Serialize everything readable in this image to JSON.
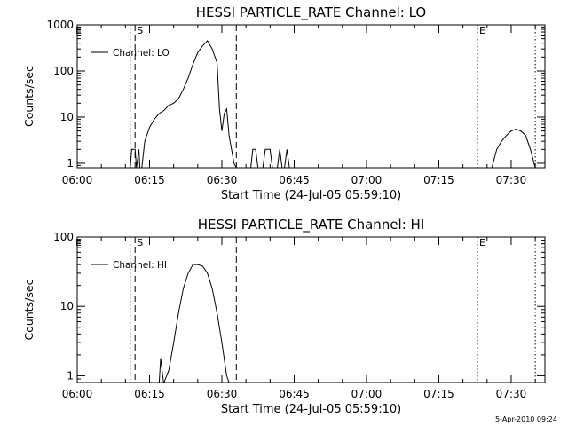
{
  "footer": "5-Apr-2010 09:24",
  "chart_data": [
    {
      "type": "line",
      "title": "HESSI PARTICLE_RATE Channel: LO",
      "xlabel": "Start Time (24-Jul-05 05:59:10)",
      "ylabel": "Counts/sec",
      "yscale": "log",
      "xlim": [
        "06:00",
        "07:37"
      ],
      "ylim": [
        0.8,
        1000
      ],
      "x_ticks": [
        "06:00",
        "06:15",
        "06:30",
        "06:45",
        "07:00",
        "07:15",
        "07:30"
      ],
      "y_ticks": [
        {
          "value": 1,
          "label": "1"
        },
        {
          "value": 10,
          "label": "10"
        },
        {
          "value": 100,
          "label": "100"
        },
        {
          "value": 1000,
          "label": "1000"
        }
      ],
      "legend": {
        "label": "Channel: LO",
        "position": "top-left"
      },
      "markers": [
        {
          "time": "06:11",
          "style": "dotted"
        },
        {
          "time": "06:12",
          "style": "dashed",
          "label": "S"
        },
        {
          "time": "06:33",
          "style": "dashed"
        },
        {
          "time": "07:23",
          "style": "dotted",
          "label": "E"
        },
        {
          "time": "07:35",
          "style": "dotted"
        }
      ],
      "corner_label": "E",
      "series": [
        {
          "name": "Channel: LO",
          "segments": [
            {
              "x": [
                "06:11",
                "06:11.3",
                "06:12",
                "06:12.3",
                "06:12.8",
                "06:13",
                "06:13.4"
              ],
              "y": [
                0.8,
                2,
                2,
                0.8,
                2,
                0.8,
                0.8
              ]
            },
            {
              "x": [
                "06:13.4",
                "06:14",
                "06:15",
                "06:16",
                "06:17",
                "06:18",
                "06:19",
                "06:20",
                "06:21",
                "06:22",
                "06:23",
                "06:24",
                "06:25",
                "06:26",
                "06:27",
                "06:28",
                "06:29",
                "06:29.5",
                "06:30",
                "06:30.5",
                "06:31",
                "06:31.5",
                "06:32",
                "06:32.5",
                "06:33"
              ],
              "y": [
                0.8,
                3,
                6,
                9,
                12,
                14,
                18,
                20,
                25,
                40,
                70,
                140,
                250,
                350,
                450,
                300,
                150,
                15,
                5,
                12,
                15,
                4,
                2,
                1,
                0.8
              ]
            },
            {
              "x": [
                "06:36",
                "06:36.4",
                "06:37",
                "06:37.5"
              ],
              "y": [
                0.8,
                2,
                2,
                0.8
              ]
            },
            {
              "x": [
                "06:38.5",
                "06:39",
                "06:40",
                "06:40.5"
              ],
              "y": [
                0.8,
                2,
                2,
                0.8
              ]
            },
            {
              "x": [
                "06:41.5",
                "06:42",
                "06:42.5"
              ],
              "y": [
                0.8,
                2,
                0.8
              ]
            },
            {
              "x": [
                "06:43",
                "06:43.5",
                "06:44"
              ],
              "y": [
                0.8,
                2,
                0.8
              ]
            },
            {
              "x": [
                "07:26",
                "07:27",
                "07:28",
                "07:29",
                "07:30",
                "07:31",
                "07:32",
                "07:33",
                "07:34",
                "07:35"
              ],
              "y": [
                0.8,
                2,
                3,
                4,
                5,
                5.5,
                5,
                4,
                2,
                0.8
              ]
            }
          ]
        }
      ]
    },
    {
      "type": "line",
      "title": "HESSI PARTICLE_RATE Channel: HI",
      "xlabel": "Start Time (24-Jul-05 05:59:10)",
      "ylabel": "Counts/sec",
      "yscale": "log",
      "xlim": [
        "06:00",
        "07:37"
      ],
      "ylim": [
        0.8,
        100
      ],
      "x_ticks": [
        "06:00",
        "06:15",
        "06:30",
        "06:45",
        "07:00",
        "07:15",
        "07:30"
      ],
      "y_ticks": [
        {
          "value": 1,
          "label": "1"
        },
        {
          "value": 10,
          "label": "10"
        },
        {
          "value": 100,
          "label": "100"
        }
      ],
      "legend": {
        "label": "Channel: HI",
        "position": "top-left"
      },
      "markers": [
        {
          "time": "06:11",
          "style": "dotted"
        },
        {
          "time": "06:12",
          "style": "dashed",
          "label": "S"
        },
        {
          "time": "06:33",
          "style": "dashed"
        },
        {
          "time": "07:23",
          "style": "dotted",
          "label": "E"
        },
        {
          "time": "07:35",
          "style": "dotted"
        }
      ],
      "corner_label": "E",
      "series": [
        {
          "name": "Channel: HI",
          "segments": [
            {
              "x": [
                "06:17",
                "06:17.3",
                "06:17.6",
                "06:17.9"
              ],
              "y": [
                0.8,
                1.8,
                1.2,
                0.8
              ]
            },
            {
              "x": [
                "06:18",
                "06:19",
                "06:20",
                "06:21",
                "06:22",
                "06:23",
                "06:24",
                "06:25",
                "06:26",
                "06:27",
                "06:28",
                "06:29",
                "06:30",
                "06:31",
                "06:31.5"
              ],
              "y": [
                0.8,
                1.2,
                3,
                8,
                18,
                30,
                40,
                40,
                38,
                30,
                18,
                8,
                3,
                1,
                0.8
              ]
            }
          ]
        }
      ]
    }
  ]
}
